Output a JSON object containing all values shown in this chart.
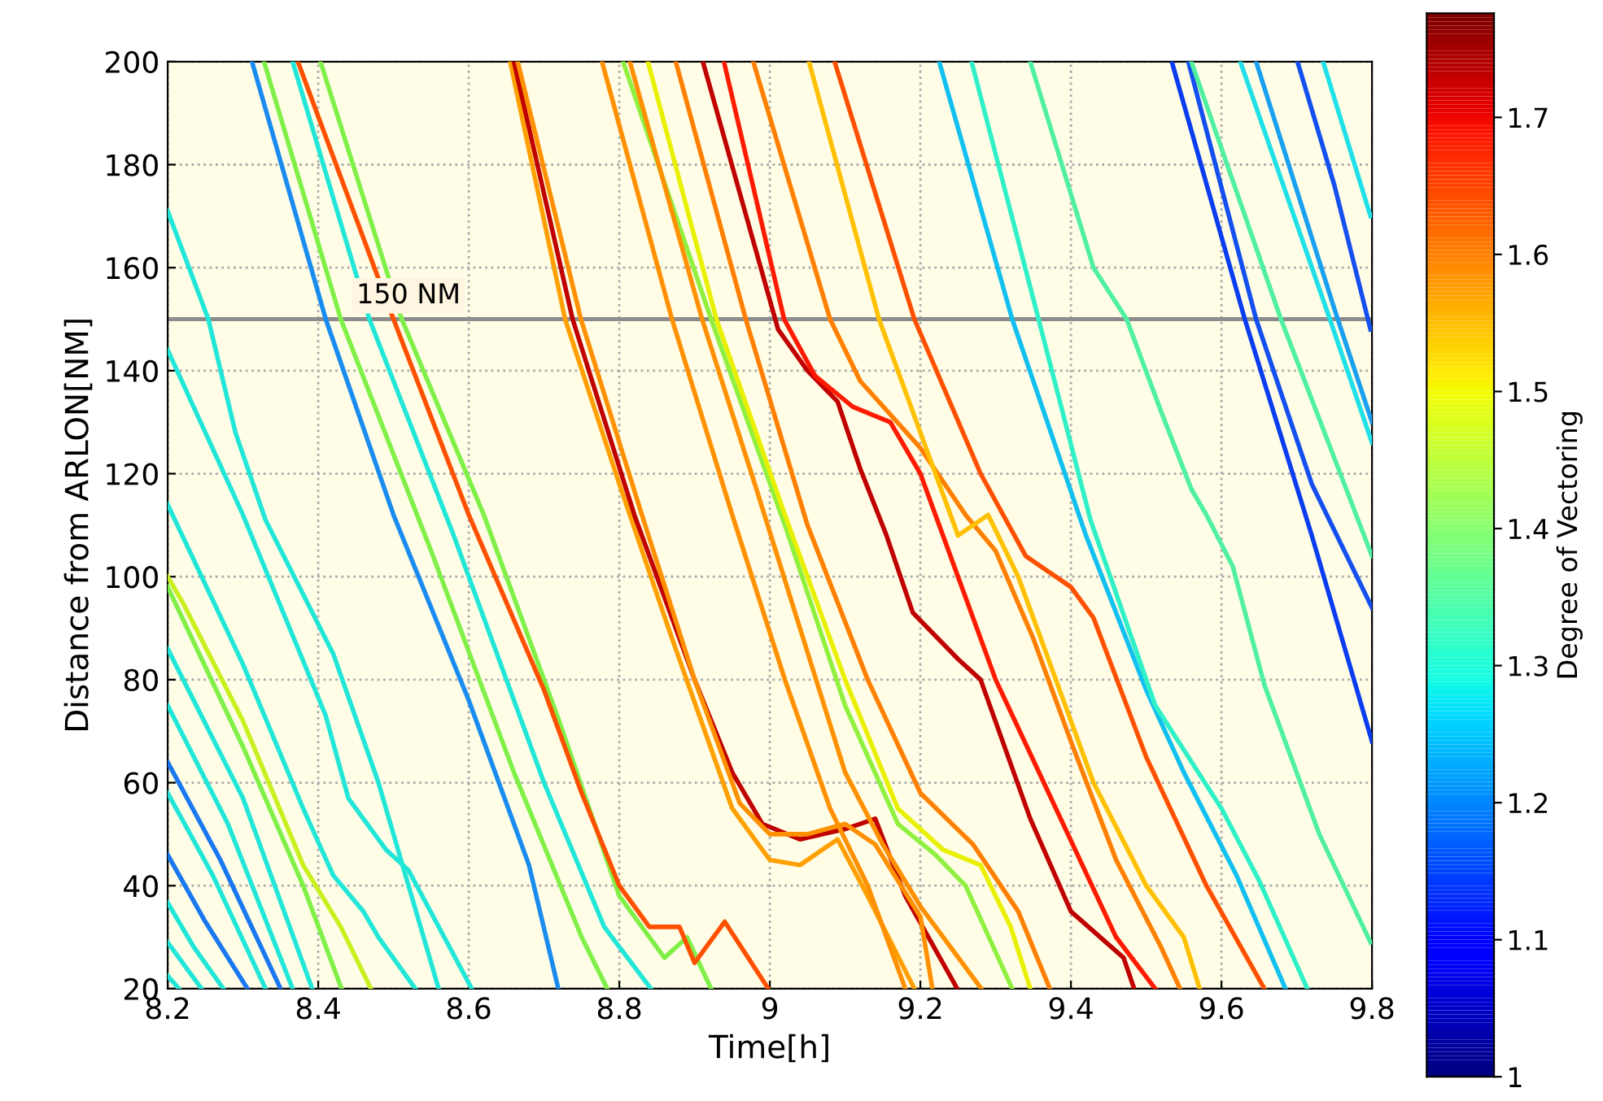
{
  "chart_data": {
    "type": "line",
    "xlabel": "Time[h]",
    "ylabel": "Distance from ARLON[NM]",
    "clabel": "Degree of Vectoring",
    "xlim": [
      8.2,
      9.8
    ],
    "xticks": [
      8.2,
      8.4,
      8.6,
      8.8,
      9,
      9.2,
      9.4,
      9.6,
      9.8
    ],
    "ylim": [
      20,
      200
    ],
    "yticks": [
      20,
      40,
      60,
      80,
      100,
      120,
      140,
      160,
      180,
      200
    ],
    "clim": [
      1,
      1.776
    ],
    "cticks": [
      1,
      1.1,
      1.2,
      1.3,
      1.4,
      1.5,
      1.6,
      1.7
    ],
    "grid": true,
    "line_style": "solid",
    "marker": "none",
    "ref_lines": [
      {
        "axis": "y",
        "value": 150,
        "label": "150 NM",
        "color": "#8c8c8c"
      }
    ],
    "series": [
      {
        "color": "#22e6d8",
        "x": [
          8.2,
          8.215
        ],
        "values": [
          22.5,
          20
        ]
      },
      {
        "color": "#22e6d8",
        "x": [
          8.2,
          8.245
        ],
        "values": [
          29,
          20
        ]
      },
      {
        "color": "#22e6d8",
        "x": [
          8.2,
          8.235,
          8.274
        ],
        "values": [
          36.7,
          28,
          20
        ]
      },
      {
        "color": "#1a78f0",
        "x": [
          8.2,
          8.25,
          8.306
        ],
        "values": [
          46,
          33,
          20
        ]
      },
      {
        "color": "#22e6d8",
        "x": [
          8.2,
          8.26,
          8.33
        ],
        "values": [
          58,
          42,
          20
        ]
      },
      {
        "color": "#1a78f0",
        "x": [
          8.2,
          8.27,
          8.35
        ],
        "values": [
          64,
          45,
          20
        ]
      },
      {
        "color": "#22e6d8",
        "x": [
          8.2,
          8.28,
          8.366
        ],
        "values": [
          75,
          52,
          20
        ]
      },
      {
        "color": "#22e6d8",
        "x": [
          8.2,
          8.3,
          8.392
        ],
        "values": [
          86,
          57,
          20
        ]
      },
      {
        "color": "#80f048",
        "x": [
          8.2,
          8.3,
          8.38,
          8.431
        ],
        "values": [
          98,
          67,
          40,
          20
        ]
      },
      {
        "color": "#c8f020",
        "x": [
          8.2,
          8.22,
          8.3,
          8.38,
          8.43,
          8.47
        ],
        "values": [
          100,
          95,
          72,
          44,
          32,
          20
        ]
      },
      {
        "color": "#22e6d8",
        "x": [
          8.2,
          8.3,
          8.38,
          8.42,
          8.46,
          8.48,
          8.529
        ],
        "values": [
          114,
          83,
          55,
          42,
          35,
          30,
          20
        ]
      },
      {
        "color": "#22e6d8",
        "x": [
          8.2,
          8.3,
          8.41,
          8.44,
          8.49,
          8.52,
          8.604
        ],
        "values": [
          144,
          112,
          73,
          57,
          47,
          43,
          20
        ]
      },
      {
        "color": "#22e6d8",
        "x": [
          8.2,
          8.254,
          8.29,
          8.33,
          8.42,
          8.48,
          8.56
        ],
        "values": [
          171,
          150,
          128,
          111,
          85,
          60,
          20
        ]
      },
      {
        "color": "#1a8cf0",
        "x": [
          8.312,
          8.41,
          8.5,
          8.6,
          8.68,
          8.719
        ],
        "values": [
          200,
          150,
          112,
          76,
          44,
          20
        ]
      },
      {
        "color": "#80f048",
        "x": [
          8.328,
          8.43,
          8.55,
          8.66,
          8.75,
          8.784
        ],
        "values": [
          200,
          150,
          105,
          62,
          30,
          20
        ]
      },
      {
        "color": "#22e6d8",
        "x": [
          8.366,
          8.468,
          8.58,
          8.7,
          8.78,
          8.842
        ],
        "values": [
          200,
          150,
          108,
          60,
          32,
          20
        ]
      },
      {
        "color": "#80f048",
        "x": [
          8.403,
          8.511,
          8.62,
          8.72,
          8.8,
          8.86,
          8.89,
          8.922
        ],
        "values": [
          200,
          150,
          112,
          72,
          38,
          26,
          30,
          20
        ]
      },
      {
        "color": "#ff5000",
        "x": [
          8.373,
          8.5,
          8.6,
          8.7,
          8.75,
          8.8,
          8.84,
          8.88,
          8.9,
          8.94,
          8.998
        ],
        "values": [
          200,
          150,
          112,
          78,
          58,
          40,
          32,
          32,
          25,
          33,
          20
        ]
      },
      {
        "color": "#ffa000",
        "x": [
          8.655,
          8.728,
          8.8,
          8.87,
          8.95,
          9.0,
          9.04,
          9.09,
          9.13,
          9.192
        ],
        "values": [
          200,
          150,
          118,
          88,
          55,
          45,
          44,
          49,
          38,
          20
        ]
      },
      {
        "color": "#c00000",
        "x": [
          8.66,
          8.738,
          8.82,
          8.9,
          8.95,
          8.99,
          9.04,
          9.1,
          9.14,
          9.18,
          9.249
        ],
        "values": [
          200,
          150,
          112,
          80,
          62,
          52,
          49,
          51,
          53,
          38,
          20
        ]
      },
      {
        "color": "#ff9000",
        "x": [
          8.665,
          8.749,
          8.83,
          8.9,
          8.96,
          9.0,
          9.05,
          9.1,
          9.14,
          9.2,
          9.216
        ],
        "values": [
          200,
          150,
          112,
          80,
          56,
          50,
          50,
          52,
          48,
          34,
          20
        ]
      },
      {
        "color": "#ff9000",
        "x": [
          8.777,
          8.87,
          8.95,
          9.02,
          9.08,
          9.13,
          9.18
        ],
        "values": [
          200,
          150,
          112,
          80,
          55,
          40,
          20
        ]
      },
      {
        "color": "#90f040",
        "x": [
          8.805,
          8.922,
          9.02,
          9.1,
          9.17,
          9.22,
          9.26,
          9.322
        ],
        "values": [
          200,
          150,
          110,
          75,
          52,
          46,
          40,
          20
        ]
      },
      {
        "color": "#ff9000",
        "x": [
          8.814,
          8.91,
          8.98,
          9.04,
          9.1,
          9.15,
          9.2,
          9.281
        ],
        "values": [
          200,
          150,
          118,
          90,
          62,
          48,
          36,
          20
        ]
      },
      {
        "color": "#e8f000",
        "x": [
          8.838,
          8.929,
          9.02,
          9.1,
          9.17,
          9.23,
          9.28,
          9.32,
          9.346
        ],
        "values": [
          200,
          150,
          112,
          80,
          55,
          47,
          44,
          32,
          20
        ]
      },
      {
        "color": "#ff8000",
        "x": [
          8.875,
          8.968,
          9.05,
          9.13,
          9.2,
          9.27,
          9.33,
          9.372
        ],
        "values": [
          200,
          150,
          110,
          80,
          58,
          48,
          35,
          20
        ]
      },
      {
        "color": "#c00000",
        "x": [
          8.911,
          9.011,
          9.05,
          9.09,
          9.12,
          9.155,
          9.19,
          9.25,
          9.28,
          9.346,
          9.4,
          9.47,
          9.484
        ],
        "values": [
          200,
          148,
          140,
          134,
          121,
          108,
          93,
          84,
          80,
          53,
          35,
          26,
          20
        ]
      },
      {
        "color": "#ff1a00",
        "x": [
          8.939,
          9.019,
          9.06,
          9.11,
          9.16,
          9.2,
          9.25,
          9.3,
          9.38,
          9.46,
          9.512
        ],
        "values": [
          200,
          150,
          139,
          133,
          130,
          120,
          100,
          80,
          55,
          30,
          20
        ]
      },
      {
        "color": "#ff8000",
        "x": [
          8.978,
          9.08,
          9.12,
          9.2,
          9.26,
          9.3,
          9.35,
          9.4,
          9.46,
          9.52,
          9.545
        ],
        "values": [
          200,
          150,
          138,
          125,
          112,
          105,
          88,
          68,
          45,
          28,
          20
        ]
      },
      {
        "color": "#ffc000",
        "x": [
          9.052,
          9.145,
          9.2,
          9.25,
          9.29,
          9.33,
          9.38,
          9.43,
          9.5,
          9.55,
          9.571
        ],
        "values": [
          200,
          150,
          128,
          108,
          112,
          100,
          80,
          60,
          40,
          30,
          20
        ]
      },
      {
        "color": "#ff5000",
        "x": [
          9.086,
          9.192,
          9.28,
          9.34,
          9.4,
          9.43,
          9.5,
          9.58,
          9.657
        ],
        "values": [
          200,
          150,
          120,
          104,
          98,
          92,
          65,
          40,
          20
        ]
      },
      {
        "color": "#12c0f0",
        "x": [
          9.225,
          9.322,
          9.42,
          9.5,
          9.55,
          9.62,
          9.685
        ],
        "values": [
          200,
          150,
          108,
          78,
          62,
          42,
          20
        ]
      },
      {
        "color": "#30f0c8",
        "x": [
          9.268,
          9.357,
          9.426,
          9.512,
          9.6,
          9.65,
          9.714
        ],
        "values": [
          200,
          150,
          111,
          75,
          55,
          41,
          20
        ]
      },
      {
        "color": "#50f0a0",
        "x": [
          9.346,
          9.43,
          9.474,
          9.52,
          9.56,
          9.58,
          9.615,
          9.657,
          9.73,
          9.798
        ],
        "values": [
          200,
          160,
          150,
          132,
          117,
          112,
          102,
          79,
          50,
          29
        ]
      },
      {
        "color": "#0a3cf0",
        "x": [
          9.534,
          9.631,
          9.72,
          9.8
        ],
        "values": [
          200,
          150,
          108,
          68
        ]
      },
      {
        "color": "#1450f0",
        "x": [
          9.556,
          9.646,
          9.72,
          9.8
        ],
        "values": [
          200,
          150,
          118,
          94
        ]
      },
      {
        "color": "#50f0a0",
        "x": [
          9.56,
          9.679,
          9.8
        ],
        "values": [
          200,
          150,
          104
        ]
      },
      {
        "color": "#20e0e8",
        "x": [
          9.625,
          9.744,
          9.8
        ],
        "values": [
          200,
          150,
          126
        ]
      },
      {
        "color": "#1aa0f0",
        "x": [
          9.646,
          9.75,
          9.8
        ],
        "values": [
          200,
          152,
          130
        ]
      },
      {
        "color": "#1450f0",
        "x": [
          9.701,
          9.75,
          9.798
        ],
        "values": [
          200,
          176,
          148
        ]
      },
      {
        "color": "#20e0e8",
        "x": [
          9.735,
          9.798
        ],
        "values": [
          200,
          170
        ]
      }
    ]
  }
}
